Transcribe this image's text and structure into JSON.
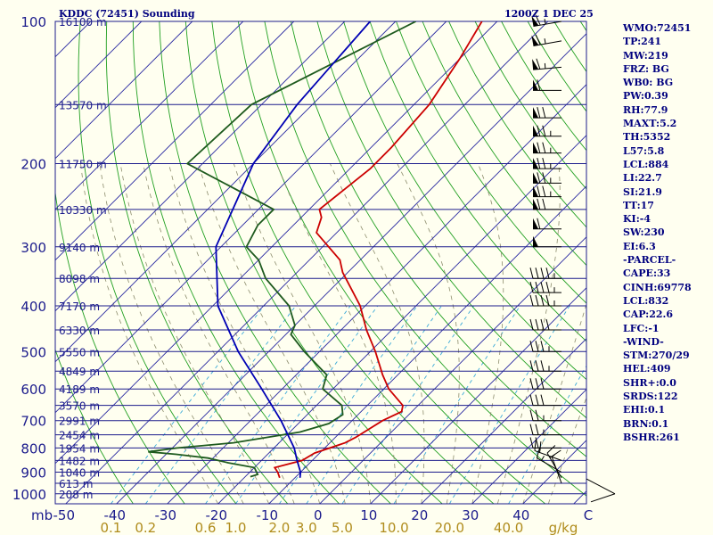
{
  "header": {
    "station": "KDDC (72451) Sounding",
    "time": "1200Z  1 DEC 25"
  },
  "indices": [
    "WMO:72451",
    "TP:241",
    "MW:219",
    "FRZ: BG",
    "WB0: BG",
    "PW:0.39",
    "RH:77.9",
    "MAXT:5.2",
    "TH:5352",
    "L57:5.8",
    "LCL:884",
    "LI:22.7",
    "SI:21.9",
    "TT:17",
    "KI:-4",
    "SW:230",
    "EI:6.3",
    "-PARCEL-",
    "CAPE:33",
    "CINH:69778",
    "LCL:832",
    "CAP:22.6",
    "LFC:-1",
    "-WIND-",
    "STM:270/29",
    "HEL:409",
    "SHR+:0.0",
    "SRDS:122",
    "EHI:0.1",
    "BRN:0.1",
    "BSHR:261"
  ],
  "chart_data": {
    "type": "line",
    "chart_kind": "skew-T log-P sounding",
    "x_unit_label": "C",
    "y_unit_label": "mb",
    "pressure_ticks": [
      100,
      200,
      300,
      400,
      500,
      600,
      700,
      800,
      900,
      1000
    ],
    "temperature_ticks": [
      -50,
      -40,
      -30,
      -20,
      -10,
      0,
      10,
      20,
      30,
      40
    ],
    "mixing_ratio_unit": "g/kg",
    "mixing_ratio_labels": [
      "0.1",
      "0.2",
      "0.6",
      "1.0",
      "2.0",
      "3.0",
      "5.0",
      "10.0",
      "20.0",
      "40.0"
    ],
    "height_labels": [
      {
        "p": 100,
        "label": "16100 m"
      },
      {
        "p": 150,
        "label": "13570 m"
      },
      {
        "p": 200,
        "label": "11750 m"
      },
      {
        "p": 250,
        "label": "10330 m"
      },
      {
        "p": 300,
        "label": "9140 m"
      },
      {
        "p": 350,
        "label": "8098 m"
      },
      {
        "p": 400,
        "label": "7170 m"
      },
      {
        "p": 450,
        "label": "6330 m"
      },
      {
        "p": 500,
        "label": "5550 m"
      },
      {
        "p": 550,
        "label": "4849 m"
      },
      {
        "p": 600,
        "label": "4189 m"
      },
      {
        "p": 650,
        "label": "3570 m"
      },
      {
        "p": 700,
        "label": "2991 m"
      },
      {
        "p": 750,
        "label": "2454 m"
      },
      {
        "p": 800,
        "label": "1954 m"
      },
      {
        "p": 850,
        "label": "1482 m"
      },
      {
        "p": 900,
        "label": "1040 m"
      },
      {
        "p": 950,
        "label": "613 m"
      },
      {
        "p": 1000,
        "label": "208 m"
      }
    ],
    "series": [
      {
        "role": "temperature",
        "color": "#cc0000",
        "points": [
          [
            100,
            -63
          ],
          [
            120,
            -60
          ],
          [
            150,
            -57
          ],
          [
            185,
            -56
          ],
          [
            205,
            -56
          ],
          [
            250,
            -58
          ],
          [
            260,
            -56
          ],
          [
            280,
            -54
          ],
          [
            320,
            -44
          ],
          [
            340,
            -41
          ],
          [
            400,
            -31
          ],
          [
            450,
            -25
          ],
          [
            500,
            -19
          ],
          [
            560,
            -13
          ],
          [
            600,
            -9
          ],
          [
            650,
            -3
          ],
          [
            670,
            -2
          ],
          [
            700,
            -4
          ],
          [
            760,
            -6
          ],
          [
            780,
            -7
          ],
          [
            820,
            -11
          ],
          [
            850,
            -12
          ],
          [
            880,
            -16
          ],
          [
            900,
            -14.5
          ],
          [
            925,
            -13
          ]
        ]
      },
      {
        "role": "dewpoint",
        "color": "#1e5a1e",
        "points": [
          [
            100,
            -76
          ],
          [
            150,
            -92
          ],
          [
            200,
            -93
          ],
          [
            250,
            -67
          ],
          [
            270,
            -67
          ],
          [
            300,
            -65
          ],
          [
            320,
            -60
          ],
          [
            350,
            -55
          ],
          [
            400,
            -45
          ],
          [
            440,
            -40
          ],
          [
            460,
            -39
          ],
          [
            500,
            -33
          ],
          [
            560,
            -24
          ],
          [
            600,
            -22
          ],
          [
            650,
            -15
          ],
          [
            680,
            -13
          ],
          [
            710,
            -14
          ],
          [
            740,
            -18
          ],
          [
            780,
            -29
          ],
          [
            800,
            -39
          ],
          [
            815,
            -44
          ],
          [
            825,
            -38
          ],
          [
            840,
            -31
          ],
          [
            860,
            -26
          ],
          [
            880,
            -20
          ],
          [
            910,
            -18
          ],
          [
            920,
            -19
          ]
        ]
      },
      {
        "role": "parcel",
        "color": "#0000b4",
        "points": [
          [
            100,
            -85
          ],
          [
            150,
            -83
          ],
          [
            200,
            -80
          ],
          [
            300,
            -71
          ],
          [
            400,
            -59
          ],
          [
            500,
            -46
          ],
          [
            600,
            -34
          ],
          [
            700,
            -24
          ],
          [
            800,
            -16
          ],
          [
            850,
            -13
          ],
          [
            900,
            -10
          ],
          [
            925,
            -9
          ]
        ]
      }
    ],
    "wind_barbs": [
      {
        "p": 100,
        "dir": 260,
        "spd": 65
      },
      {
        "p": 110,
        "dir": 260,
        "spd": 65
      },
      {
        "p": 125,
        "dir": 265,
        "spd": 65
      },
      {
        "p": 140,
        "dir": 270,
        "spd": 60
      },
      {
        "p": 160,
        "dir": 270,
        "spd": 70
      },
      {
        "p": 175,
        "dir": 270,
        "spd": 75
      },
      {
        "p": 190,
        "dir": 270,
        "spd": 75
      },
      {
        "p": 205,
        "dir": 270,
        "spd": 75
      },
      {
        "p": 220,
        "dir": 270,
        "spd": 75
      },
      {
        "p": 235,
        "dir": 270,
        "spd": 75
      },
      {
        "p": 250,
        "dir": 270,
        "spd": 70
      },
      {
        "p": 275,
        "dir": 270,
        "spd": 60
      },
      {
        "p": 300,
        "dir": 270,
        "spd": 50
      },
      {
        "p": 350,
        "dir": 270,
        "spd": 45
      },
      {
        "p": 375,
        "dir": 270,
        "spd": 45
      },
      {
        "p": 400,
        "dir": 270,
        "spd": 45
      },
      {
        "p": 450,
        "dir": 270,
        "spd": 40
      },
      {
        "p": 500,
        "dir": 270,
        "spd": 35
      },
      {
        "p": 550,
        "dir": 270,
        "spd": 35
      },
      {
        "p": 600,
        "dir": 270,
        "spd": 30
      },
      {
        "p": 650,
        "dir": 270,
        "spd": 30
      },
      {
        "p": 700,
        "dir": 270,
        "spd": 25
      },
      {
        "p": 750,
        "dir": 270,
        "spd": 25
      },
      {
        "p": 800,
        "dir": 270,
        "spd": 20
      },
      {
        "p": 850,
        "dir": 290,
        "spd": 20
      },
      {
        "p": 900,
        "dir": 300,
        "spd": 15
      },
      {
        "p": 925,
        "dir": 330,
        "spd": 15
      },
      {
        "p": 950,
        "dir": 340,
        "spd": 10
      }
    ],
    "hodograph_color": "#000000"
  }
}
